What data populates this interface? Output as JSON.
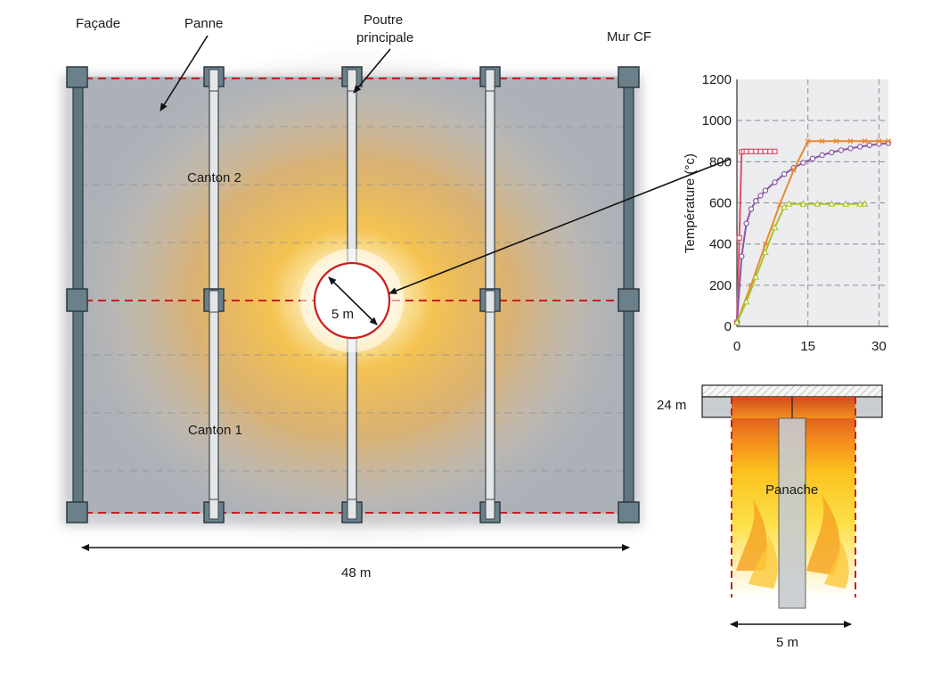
{
  "labels": {
    "facade": "Façade",
    "panne": "Panne",
    "poutre_line1": "Poutre",
    "poutre_line2": "principale",
    "mur": "Mur CF",
    "canton2": "Canton 2",
    "canton1": "Canton 1",
    "fire_diameter": "5 m",
    "width": "48 m",
    "height_24": "24 m",
    "panache": "Panache",
    "plume_width": "5 m"
  },
  "colors": {
    "slab": "#aab0b8",
    "beam_steel": "#5f7580",
    "purlin": "#e4e6e8",
    "red_dash": "#c81e1e",
    "fire_core": "#ffffff",
    "fire_mid": "#f5b43a"
  },
  "chart_data": {
    "type": "line",
    "title": "",
    "xlabel": "",
    "ylabel": "Température (°c)",
    "xlim": [
      0,
      32
    ],
    "ylim": [
      0,
      1200
    ],
    "xticks": [
      0,
      15,
      30
    ],
    "yticks": [
      0,
      200,
      400,
      600,
      800,
      1000,
      1200
    ],
    "series": [
      {
        "name": "pink",
        "color": "#d9546a",
        "marker": "square",
        "x": [
          0,
          0.5,
          1,
          1.5,
          2,
          3,
          4,
          5,
          6,
          7,
          8
        ],
        "y": [
          20,
          430,
          848,
          850,
          850,
          850,
          850,
          850,
          850,
          850,
          850
        ]
      },
      {
        "name": "purple",
        "color": "#8a57a8",
        "marker": "circle",
        "x": [
          0,
          1,
          2,
          3,
          4,
          5,
          6,
          8,
          10,
          12,
          14,
          16,
          18,
          20,
          22,
          24,
          26,
          28,
          30,
          32
        ],
        "y": [
          20,
          340,
          500,
          570,
          610,
          635,
          660,
          700,
          740,
          770,
          795,
          815,
          832,
          845,
          856,
          865,
          873,
          880,
          886,
          890
        ]
      },
      {
        "name": "orange",
        "color": "#e8892e",
        "marker": "x",
        "x": [
          0,
          3,
          6,
          9,
          12,
          15,
          18,
          21,
          24,
          27,
          30,
          32
        ],
        "y": [
          20,
          200,
          400,
          590,
          760,
          900,
          900,
          900,
          900,
          900,
          900,
          900
        ]
      },
      {
        "name": "green",
        "color": "#a8c62a",
        "marker": "triangle",
        "x": [
          0,
          2,
          4,
          6,
          8,
          10,
          11,
          14,
          17,
          20,
          23,
          26,
          27
        ],
        "y": [
          20,
          120,
          240,
          360,
          480,
          580,
          595,
          595,
          595,
          595,
          595,
          595,
          595
        ]
      }
    ]
  }
}
